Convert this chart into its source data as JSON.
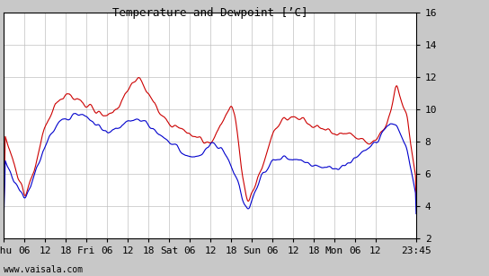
{
  "title": "Temperature and Dewpoint [’C]",
  "bg_color": "#c8c8c8",
  "plot_bg_color": "#ffffff",
  "grid_color": "#c0c0c0",
  "temp_color": "#cc0000",
  "dew_color": "#0000cc",
  "linewidth": 0.8,
  "ylim": [
    2,
    16
  ],
  "yticks": [
    2,
    4,
    6,
    8,
    10,
    12,
    14,
    16
  ],
  "watermark": "www.vaisala.com",
  "xtick_labels": [
    "Thu",
    "06",
    "12",
    "18",
    "Fri",
    "06",
    "12",
    "18",
    "Sat",
    "06",
    "12",
    "18",
    "Sun",
    "06",
    "12",
    "18",
    "Mon",
    "06",
    "12",
    "23:45"
  ],
  "xtick_pos": [
    0,
    6,
    12,
    18,
    24,
    30,
    36,
    42,
    48,
    54,
    60,
    66,
    72,
    78,
    84,
    90,
    96,
    102,
    108,
    119.75
  ],
  "xlim": [
    0,
    119.75
  ],
  "font_family": "monospace",
  "title_fontsize": 9,
  "tick_fontsize": 8,
  "watermark_fontsize": 7
}
